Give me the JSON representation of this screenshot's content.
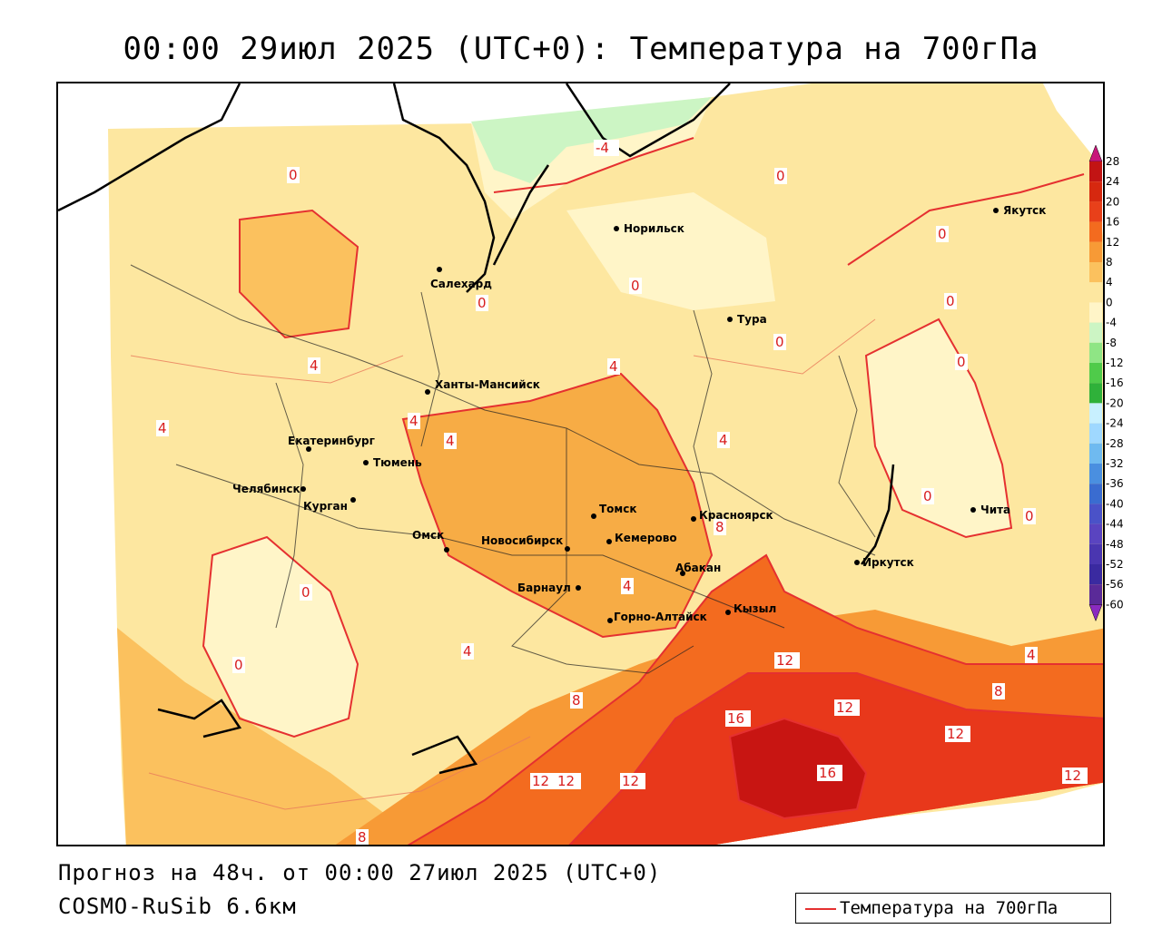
{
  "title": "00:00 29июл 2025 (UTC+0): Температура на 700гПа",
  "footer": {
    "forecast": "Прогноз на 48ч. от 00:00 27июл 2025 (UTC+0)",
    "model": "COSMO-RuSib 6.6км"
  },
  "legend": {
    "line_label": "Температура на 700гПа",
    "line_color": "#e53030"
  },
  "colorbar": {
    "ticks": [
      "28",
      "24",
      "20",
      "16",
      "12",
      "8",
      "4",
      "0",
      "-4",
      "-8",
      "-12",
      "-16",
      "-20",
      "-24",
      "-28",
      "-32",
      "-36",
      "-40",
      "-44",
      "-48",
      "-52",
      "-56",
      "-60"
    ]
  },
  "cities": [
    {
      "name": "Норильск"
    },
    {
      "name": "Якутск"
    },
    {
      "name": "Салехард"
    },
    {
      "name": "Тура"
    },
    {
      "name": "Ханты-Мансийск"
    },
    {
      "name": "Екатеринбург"
    },
    {
      "name": "Тюмень"
    },
    {
      "name": "Челябинск"
    },
    {
      "name": "Курган"
    },
    {
      "name": "Омск"
    },
    {
      "name": "Новосибирск"
    },
    {
      "name": "Томск"
    },
    {
      "name": "Кемерово"
    },
    {
      "name": "Красноярск"
    },
    {
      "name": "Абакан"
    },
    {
      "name": "Барнаул"
    },
    {
      "name": "Горно-Алтайск"
    },
    {
      "name": "Кызыл"
    },
    {
      "name": "Иркутск"
    },
    {
      "name": "Чита"
    }
  ],
  "contour_labels": [
    "-4",
    "0",
    "0",
    "0",
    "0",
    "0",
    "0",
    "0",
    "0",
    "0",
    "0",
    "0",
    "0",
    "4",
    "4",
    "4",
    "4",
    "4",
    "4",
    "4",
    "4",
    "4",
    "8",
    "8",
    "8",
    "8",
    "12",
    "12",
    "12",
    "12",
    "12",
    "12",
    "12",
    "16",
    "16"
  ]
}
